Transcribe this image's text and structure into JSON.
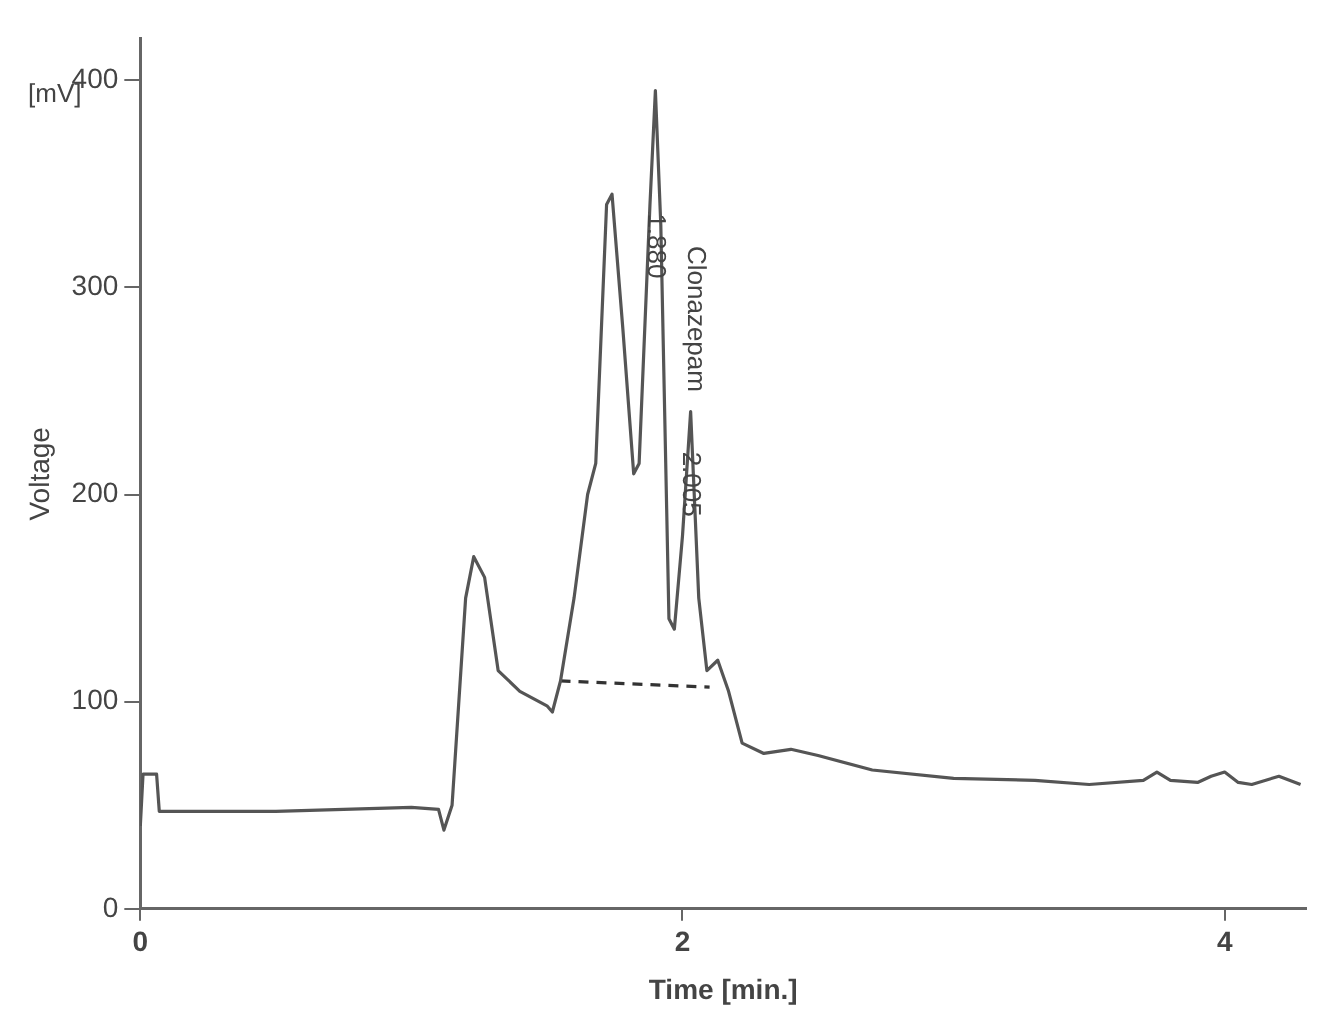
{
  "chart_data": {
    "type": "line",
    "xlabel": "Time [min.]",
    "ylabel": "Voltage",
    "xlim": [
      0,
      4.3
    ],
    "ylim": [
      0,
      420
    ],
    "xticks": [
      0,
      2,
      4
    ],
    "yticks": [
      0,
      100,
      200,
      300,
      400
    ],
    "grid": false,
    "legend": false,
    "marker": "none",
    "series": [
      {
        "color": "#555555",
        "line_style": "solid",
        "x": [
          0,
          0.01,
          0.06,
          0.07,
          0.5,
          1.0,
          1.1,
          1.12,
          1.15,
          1.2,
          1.23,
          1.27,
          1.32,
          1.4,
          1.5,
          1.52,
          1.55,
          1.6,
          1.65,
          1.68,
          1.72,
          1.74,
          1.78,
          1.82,
          1.84,
          1.88,
          1.9,
          1.92,
          1.95,
          1.97,
          2.0,
          2.03,
          2.06,
          2.09,
          2.13,
          2.17,
          2.22,
          2.3,
          2.4,
          2.5,
          2.7,
          3.0,
          3.3,
          3.5,
          3.7,
          3.75,
          3.8,
          3.9,
          3.95,
          4.0,
          4.05,
          4.1,
          4.2,
          4.28
        ],
        "values": [
          40,
          65,
          65,
          47,
          47,
          49,
          48,
          38,
          50,
          150,
          170,
          160,
          115,
          105,
          98,
          95,
          110,
          150,
          200,
          215,
          340,
          345,
          280,
          210,
          215,
          340,
          395,
          330,
          140,
          135,
          180,
          240,
          150,
          115,
          120,
          105,
          80,
          75,
          77,
          74,
          67,
          63,
          62,
          60,
          62,
          66,
          62,
          61,
          64,
          66,
          61,
          60,
          64,
          60
        ]
      },
      {
        "color": "#333333",
        "line_style": "dashed",
        "x": [
          1.55,
          2.1
        ],
        "values": [
          110,
          107
        ]
      }
    ],
    "annotations": [
      "[mV]",
      {
        "text": "1.880",
        "x": 1.9,
        "y": 320
      },
      "Clonazepam",
      {
        "text": "2.005",
        "x": 2.03,
        "y": 205
      }
    ]
  }
}
